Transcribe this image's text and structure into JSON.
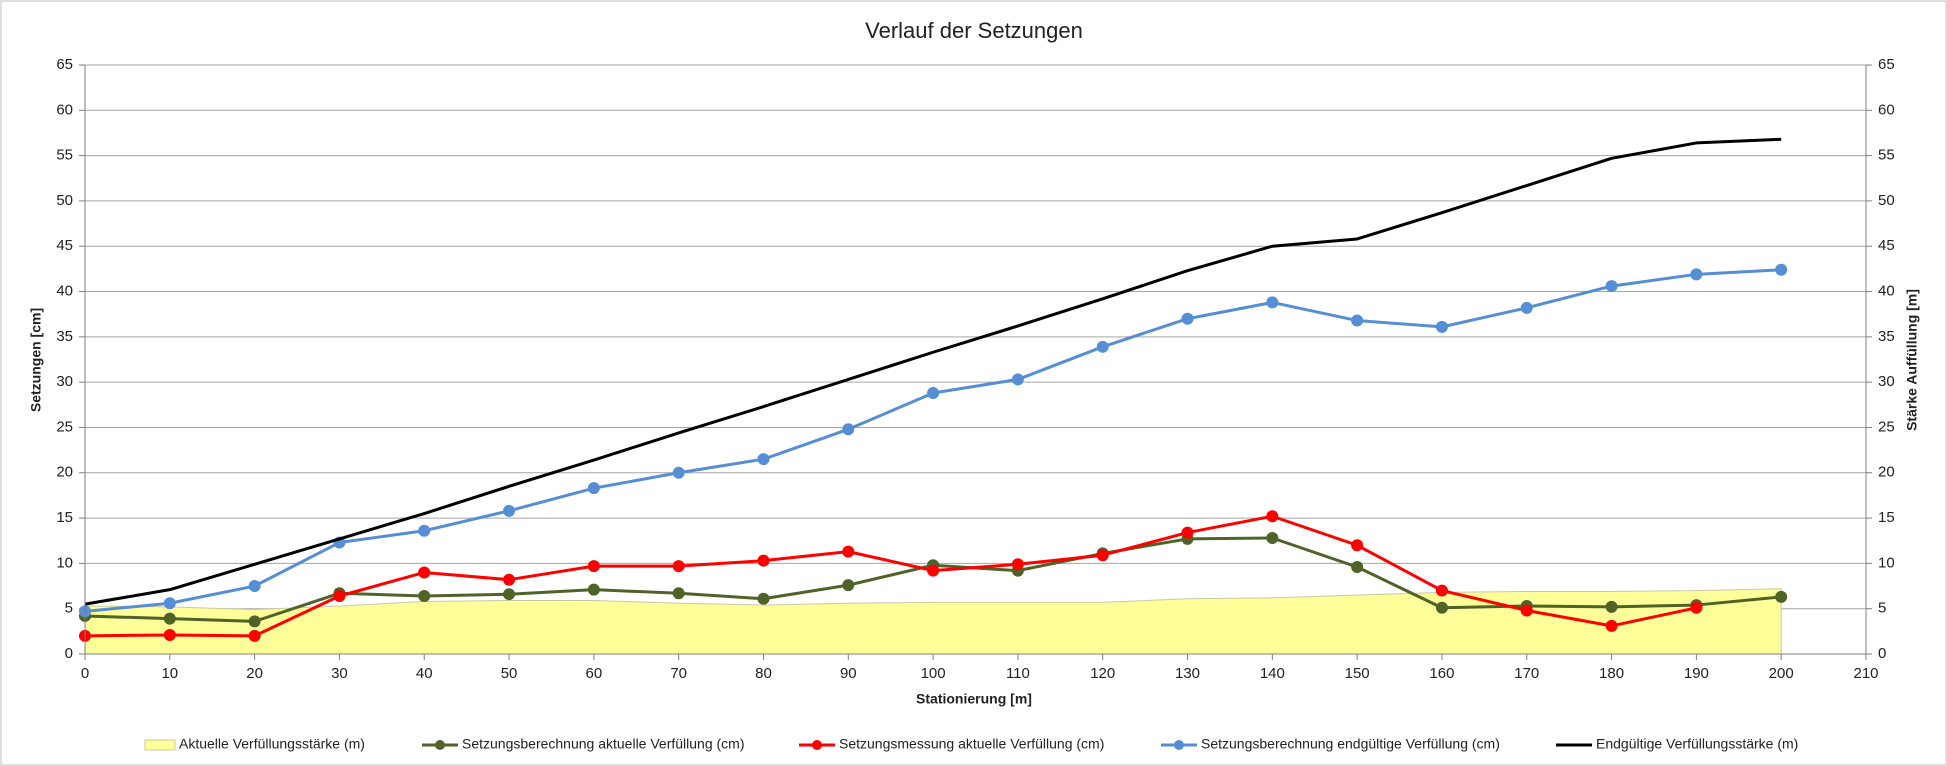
{
  "chart_data": {
    "type": "line",
    "title": "Verlauf der Setzungen",
    "x_label": "Stationierung [m]",
    "y_label": "Setzungen [cm]",
    "y2_label": "Stärke Auffüllung [m]",
    "x": [
      0,
      10,
      20,
      30,
      40,
      50,
      60,
      70,
      80,
      90,
      100,
      110,
      120,
      130,
      140,
      150,
      160,
      170,
      180,
      190,
      200
    ],
    "xlim": [
      0,
      210
    ],
    "xticks": [
      0,
      10,
      20,
      30,
      40,
      50,
      60,
      70,
      80,
      90,
      100,
      110,
      120,
      130,
      140,
      150,
      160,
      170,
      180,
      190,
      200,
      210
    ],
    "ylim": [
      0,
      65
    ],
    "yticks": [
      0,
      5,
      10,
      15,
      20,
      25,
      30,
      35,
      40,
      45,
      50,
      55,
      60,
      65
    ],
    "y2lim": [
      0,
      65
    ],
    "y2ticks": [
      0,
      5,
      10,
      15,
      20,
      25,
      30,
      35,
      40,
      45,
      50,
      55,
      60,
      65
    ],
    "grid": true,
    "legend": "bottom",
    "series": [
      {
        "name": "Aktuelle Verfüllungsstärke (m)",
        "kind": "area",
        "axis": "y2",
        "color": "#ffff99",
        "edge_color": "#c9c9a3",
        "values": [
          5.3,
          5.2,
          4.9,
          5.3,
          5.8,
          5.9,
          5.9,
          5.6,
          5.4,
          5.6,
          5.7,
          5.7,
          5.7,
          6.1,
          6.2,
          6.5,
          6.8,
          6.9,
          6.9,
          7.0,
          7.2
        ]
      },
      {
        "name": "Setzungsberechnung aktuelle Verfüllung (cm)",
        "kind": "line",
        "markers": true,
        "color": "#4f6228",
        "values": [
          4.2,
          3.9,
          3.6,
          6.7,
          6.4,
          6.6,
          7.1,
          6.7,
          6.1,
          7.6,
          9.8,
          9.2,
          11.1,
          12.7,
          12.8,
          9.6,
          5.1,
          5.3,
          5.2,
          5.4,
          6.3
        ]
      },
      {
        "name": "Setzungsmessung aktuelle Verfüllung (cm)",
        "kind": "line",
        "markers": true,
        "color": "#ff0000",
        "values": [
          2.0,
          2.1,
          2.0,
          6.4,
          9.0,
          8.2,
          9.7,
          9.7,
          10.3,
          11.3,
          9.2,
          9.9,
          10.9,
          13.4,
          15.2,
          12.0,
          7.0,
          4.8,
          3.1,
          5.1,
          null
        ]
      },
      {
        "name": "Setzungsberechnung endgültige Verfüllung (cm)",
        "kind": "line",
        "markers": true,
        "color": "#558ed5",
        "values": [
          4.7,
          5.6,
          7.5,
          12.3,
          13.6,
          15.8,
          18.3,
          20.0,
          21.5,
          24.8,
          28.8,
          30.3,
          33.9,
          37.0,
          38.8,
          36.8,
          36.1,
          38.2,
          40.6,
          41.9,
          42.4
        ]
      },
      {
        "name": "Endgültige Verfüllungsstärke (m)",
        "kind": "line",
        "markers": false,
        "axis": "y2",
        "color": "#000000",
        "values": [
          5.5,
          7.1,
          9.9,
          12.7,
          15.5,
          18.5,
          21.4,
          24.4,
          27.3,
          30.3,
          33.3,
          36.2,
          39.2,
          42.3,
          45.0,
          45.8,
          48.7,
          51.7,
          54.7,
          56.4,
          56.8
        ]
      }
    ]
  }
}
